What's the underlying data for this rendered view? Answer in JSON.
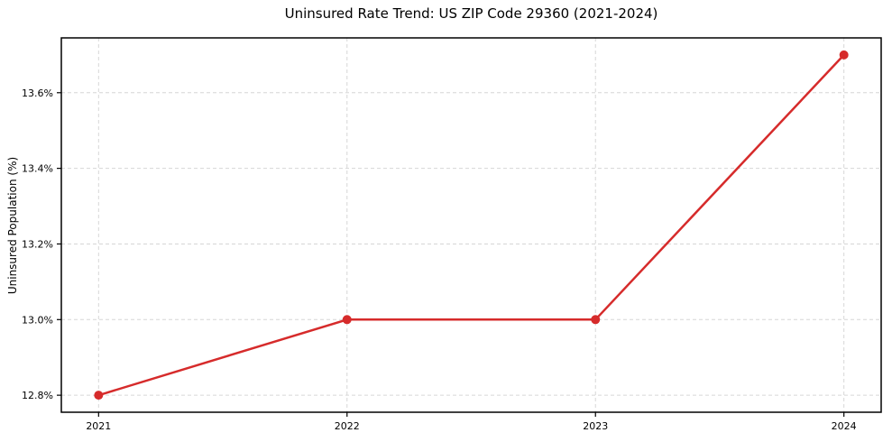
{
  "figure": {
    "background": "#ffffff",
    "text_color": "#000000",
    "spine_color": "#000000"
  },
  "chart_data": {
    "type": "line",
    "title": "Uninsured Rate Trend: US ZIP Code 29360 (2021-2024)",
    "xlabel": "",
    "ylabel": "Uninsured Population (%)",
    "x": [
      2021,
      2022,
      2023,
      2024
    ],
    "x_tick_labels": [
      "2021",
      "2022",
      "2023",
      "2024"
    ],
    "values": [
      12.8,
      13.0,
      13.0,
      13.7
    ],
    "y_tick_values": [
      12.8,
      13.0,
      13.2,
      13.4,
      13.6
    ],
    "y_tick_labels": [
      "12.8%",
      "13.0%",
      "13.2%",
      "13.4%",
      "13.6%"
    ],
    "xlim": [
      2020.85,
      2024.15
    ],
    "ylim": [
      12.755,
      13.745
    ],
    "grid": true,
    "grid_style": "dashed",
    "grid_color": "#d6d6d6",
    "line_color": "#d62b2b",
    "marker": "circle",
    "marker_radius": 5,
    "line_width": 2.5,
    "legend_position": "none"
  }
}
